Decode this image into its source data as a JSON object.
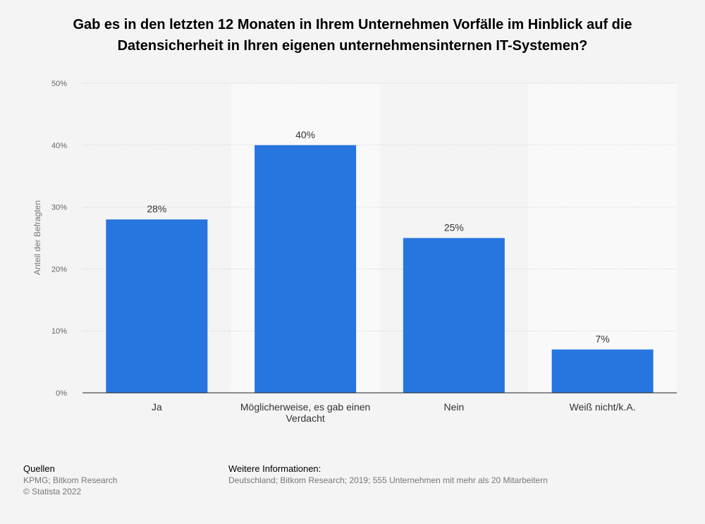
{
  "chart_data": {
    "type": "bar",
    "title": "Gab es in den letzten 12 Monaten in Ihrem Unternehmen Vorfälle im Hinblick auf die Datensicherheit in Ihren eigenen unternehmensinternen IT-Systemen?",
    "categories": [
      "Ja",
      "Möglicherweise, es gab einen Verdacht",
      "Nein",
      "Weiß nicht/k.A."
    ],
    "values": [
      28,
      40,
      25,
      7
    ],
    "data_labels": [
      "28%",
      "40%",
      "25%",
      "7%"
    ],
    "ylabel": "Anteil der Befragten",
    "xlabel": "",
    "ylim": [
      0,
      50
    ],
    "yticks": [
      0,
      10,
      20,
      30,
      40,
      50
    ],
    "ytick_labels": [
      "0%",
      "10%",
      "20%",
      "30%",
      "40%",
      "50%"
    ],
    "grid": true,
    "bar_color": "#2775de",
    "band_color": "#f9f9f9"
  },
  "footer": {
    "sources_heading": "Quellen",
    "sources_line1": "KPMG; Bitkom Research",
    "sources_line2": "© Statista 2022",
    "info_heading": "Weitere Informationen:",
    "info_line": "Deutschland; Bitkom Research; 2019; 555 Unternehmen mit mehr als 20 Mitarbeitern"
  }
}
